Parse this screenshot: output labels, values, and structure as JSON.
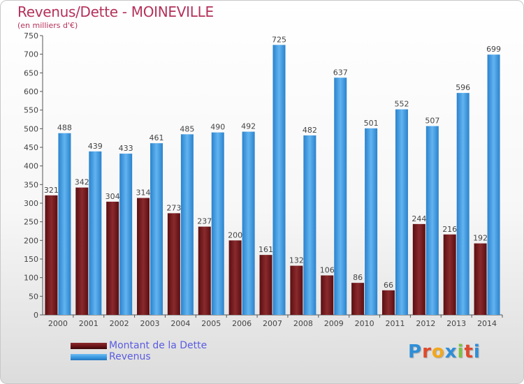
{
  "header": {
    "title": "Revenus/Dette - MOINEVILLE",
    "subtitle": "(en milliers d'€)"
  },
  "colors": {
    "dette": "#6e1518",
    "revenus": "#3b9be3",
    "title": "#b5315a",
    "legend_text": "#5b5ce0"
  },
  "chart_data": {
    "type": "bar",
    "title": "Revenus/Dette - MOINEVILLE",
    "subtitle": "(en milliers d'€)",
    "categories": [
      "2000",
      "2001",
      "2002",
      "2003",
      "2004",
      "2005",
      "2006",
      "2007",
      "2008",
      "2009",
      "2010",
      "2011",
      "2012",
      "2013",
      "2014"
    ],
    "series": [
      {
        "name": "Montant de la Dette",
        "values": [
          321,
          342,
          304,
          314,
          273,
          237,
          200,
          161,
          132,
          106,
          86,
          66,
          244,
          216,
          192
        ]
      },
      {
        "name": "Revenus",
        "values": [
          488,
          439,
          433,
          461,
          485,
          490,
          492,
          725,
          482,
          637,
          501,
          552,
          507,
          596,
          699
        ]
      }
    ],
    "yticks": [
      0,
      50,
      100,
      150,
      200,
      250,
      300,
      350,
      400,
      450,
      500,
      550,
      600,
      650,
      700,
      750
    ],
    "ylim": [
      0,
      750
    ],
    "grid": false,
    "legend_position": "bottom-left"
  },
  "legend": {
    "items": [
      {
        "label": "Montant de la Dette"
      },
      {
        "label": "Revenus"
      }
    ]
  },
  "logo": {
    "letters": [
      "P",
      "r",
      "o",
      "x",
      "i",
      "t",
      "i"
    ],
    "colors": [
      "#2e8fd8",
      "#e0492b",
      "#f2a81d",
      "#2e8fd8",
      "#7cc242",
      "#e0492b",
      "#2e8fd8"
    ]
  }
}
